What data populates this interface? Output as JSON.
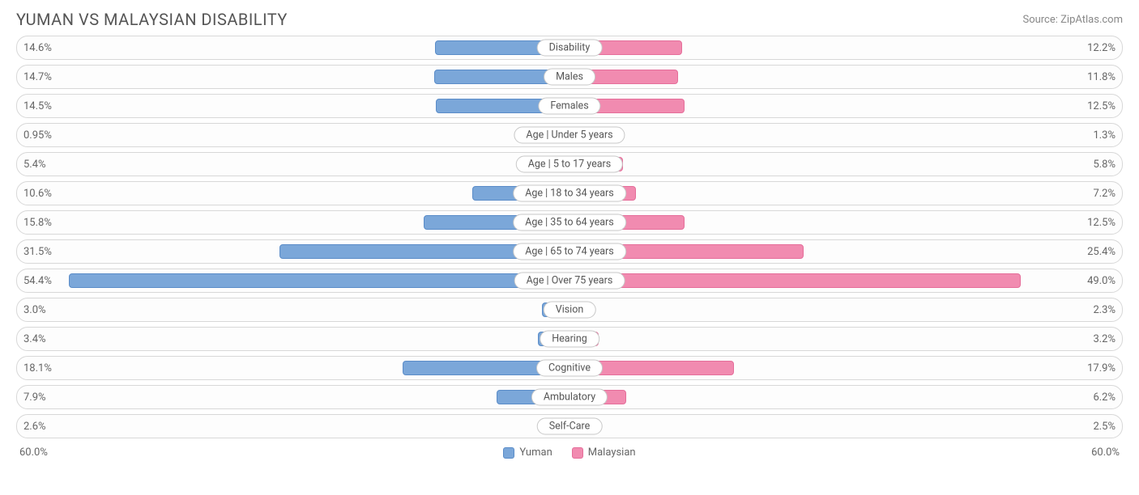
{
  "title": "YUMAN VS MALAYSIAN DISABILITY",
  "source": "Source: ZipAtlas.com",
  "chart": {
    "type": "diverging-bar",
    "max_pct": 60.0,
    "axis_label_left": "60.0%",
    "axis_label_right": "60.0%",
    "left_series": {
      "name": "Yuman",
      "bar_fill": "#7ba7d9",
      "bar_border": "#5a8cc8"
    },
    "right_series": {
      "name": "Malaysian",
      "bar_fill": "#f18bb0",
      "bar_border": "#e56e9a"
    },
    "row_bg": "#fdfdfd",
    "row_border": "#d8d8d8",
    "cat_label_bg": "#ffffff",
    "cat_label_border": "#c8c8c8",
    "text_color": "#666666",
    "rows": [
      {
        "category": "Disability",
        "left_val": 14.6,
        "left_label": "14.6%",
        "right_val": 12.2,
        "right_label": "12.2%"
      },
      {
        "category": "Males",
        "left_val": 14.7,
        "left_label": "14.7%",
        "right_val": 11.8,
        "right_label": "11.8%"
      },
      {
        "category": "Females",
        "left_val": 14.5,
        "left_label": "14.5%",
        "right_val": 12.5,
        "right_label": "12.5%"
      },
      {
        "category": "Age | Under 5 years",
        "left_val": 0.95,
        "left_label": "0.95%",
        "right_val": 1.3,
        "right_label": "1.3%"
      },
      {
        "category": "Age | 5 to 17 years",
        "left_val": 5.4,
        "left_label": "5.4%",
        "right_val": 5.8,
        "right_label": "5.8%"
      },
      {
        "category": "Age | 18 to 34 years",
        "left_val": 10.6,
        "left_label": "10.6%",
        "right_val": 7.2,
        "right_label": "7.2%"
      },
      {
        "category": "Age | 35 to 64 years",
        "left_val": 15.8,
        "left_label": "15.8%",
        "right_val": 12.5,
        "right_label": "12.5%"
      },
      {
        "category": "Age | 65 to 74 years",
        "left_val": 31.5,
        "left_label": "31.5%",
        "right_val": 25.4,
        "right_label": "25.4%"
      },
      {
        "category": "Age | Over 75 years",
        "left_val": 54.4,
        "left_label": "54.4%",
        "right_val": 49.0,
        "right_label": "49.0%"
      },
      {
        "category": "Vision",
        "left_val": 3.0,
        "left_label": "3.0%",
        "right_val": 2.3,
        "right_label": "2.3%"
      },
      {
        "category": "Hearing",
        "left_val": 3.4,
        "left_label": "3.4%",
        "right_val": 3.2,
        "right_label": "3.2%"
      },
      {
        "category": "Cognitive",
        "left_val": 18.1,
        "left_label": "18.1%",
        "right_val": 17.9,
        "right_label": "17.9%"
      },
      {
        "category": "Ambulatory",
        "left_val": 7.9,
        "left_label": "7.9%",
        "right_val": 6.2,
        "right_label": "6.2%"
      },
      {
        "category": "Self-Care",
        "left_val": 2.6,
        "left_label": "2.6%",
        "right_val": 2.5,
        "right_label": "2.5%"
      }
    ]
  }
}
